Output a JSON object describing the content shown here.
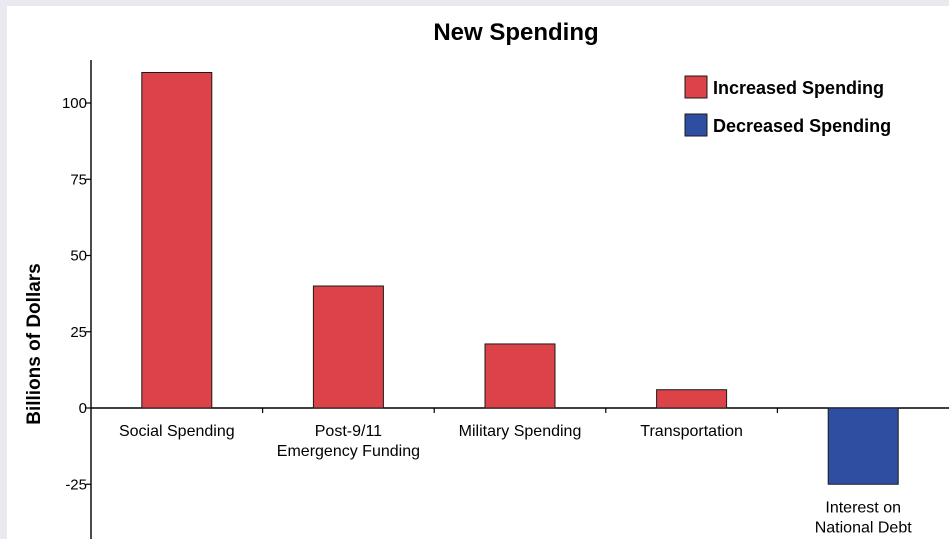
{
  "chart_data": {
    "type": "bar",
    "title": "New Spending",
    "xlabel": "",
    "ylabel": "Billions of Dollars",
    "ylim": [
      -44,
      112
    ],
    "yticks": [
      {
        "value": 100,
        "label": "100"
      },
      {
        "value": 75,
        "label": "75"
      },
      {
        "value": 50,
        "label": "50"
      },
      {
        "value": 25,
        "label": "25"
      },
      {
        "value": 0,
        "label": "0"
      },
      {
        "value": -25,
        "label": "-25"
      }
    ],
    "categories": [
      [
        "Social Spending"
      ],
      [
        "Post-9/11",
        "Emergency Funding"
      ],
      [
        "Military Spending"
      ],
      [
        "Transportation"
      ],
      [
        "Interest on",
        "National Debt"
      ]
    ],
    "values": [
      110,
      40,
      21,
      6,
      -25
    ],
    "grid": false,
    "legend_position": "top-right",
    "legend": [
      {
        "label": "Increased Spending",
        "color": "#dc4349"
      },
      {
        "label": "Decreased Spending",
        "color": "#2e4fa1"
      }
    ]
  }
}
